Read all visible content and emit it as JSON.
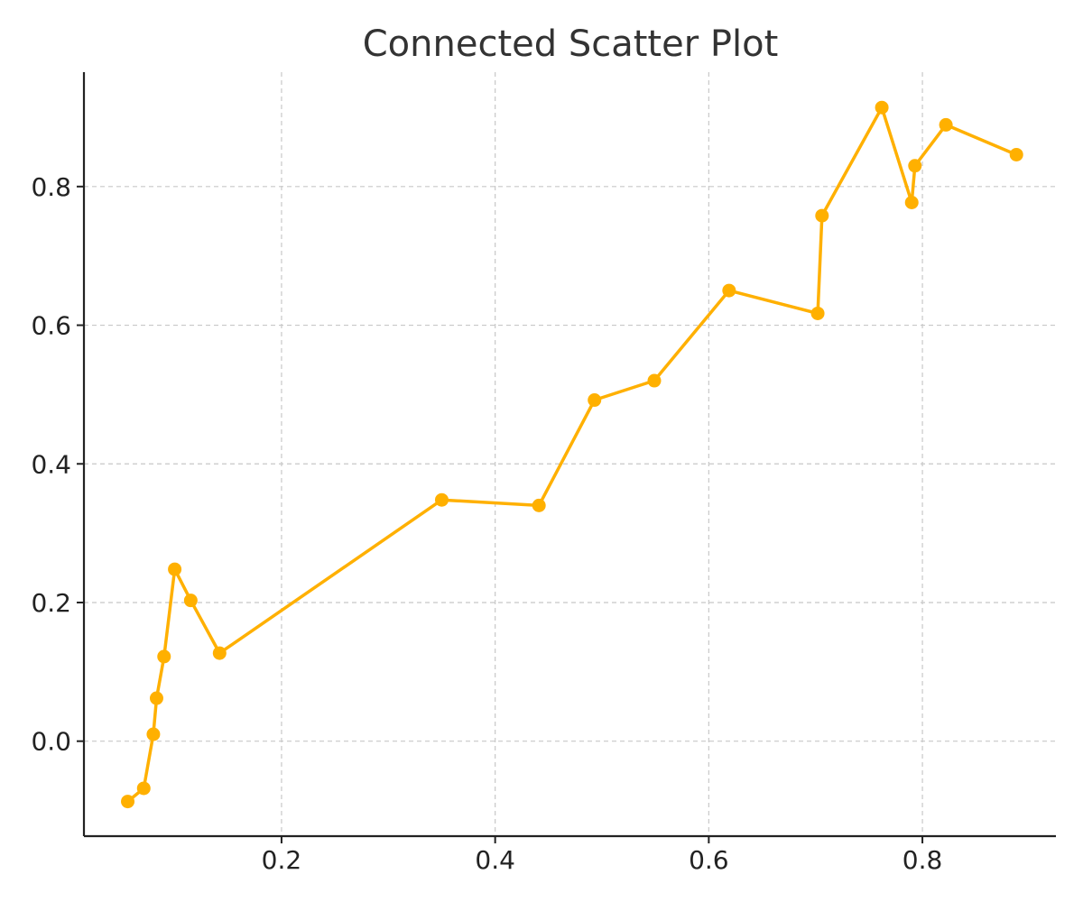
{
  "chart_data": {
    "type": "line",
    "title": "Connected Scatter Plot",
    "xlabel": "",
    "ylabel": "",
    "xlim": [
      0.015,
      0.925
    ],
    "ylim": [
      -0.137,
      0.965
    ],
    "xticks": [
      0.2,
      0.4,
      0.6,
      0.8
    ],
    "yticks": [
      0.0,
      0.2,
      0.4,
      0.6,
      0.8
    ],
    "xtick_labels": [
      "0.2",
      "0.4",
      "0.6",
      "0.8"
    ],
    "ytick_labels": [
      "0.0",
      "0.2",
      "0.4",
      "0.6",
      "0.8"
    ],
    "grid": true,
    "legend": "none",
    "color": "#FFB000",
    "series": [
      {
        "points": [
          [
            0.056,
            -0.087
          ],
          [
            0.071,
            -0.068
          ],
          [
            0.08,
            0.01
          ],
          [
            0.083,
            0.062
          ],
          [
            0.09,
            0.122
          ],
          [
            0.1,
            0.248
          ],
          [
            0.115,
            0.203
          ],
          [
            0.142,
            0.127
          ],
          [
            0.35,
            0.348
          ],
          [
            0.441,
            0.34
          ],
          [
            0.493,
            0.492
          ],
          [
            0.549,
            0.52
          ],
          [
            0.619,
            0.65
          ],
          [
            0.702,
            0.617
          ],
          [
            0.706,
            0.758
          ],
          [
            0.762,
            0.914
          ],
          [
            0.79,
            0.777
          ],
          [
            0.793,
            0.83
          ],
          [
            0.822,
            0.889
          ],
          [
            0.888,
            0.846
          ]
        ]
      }
    ]
  }
}
